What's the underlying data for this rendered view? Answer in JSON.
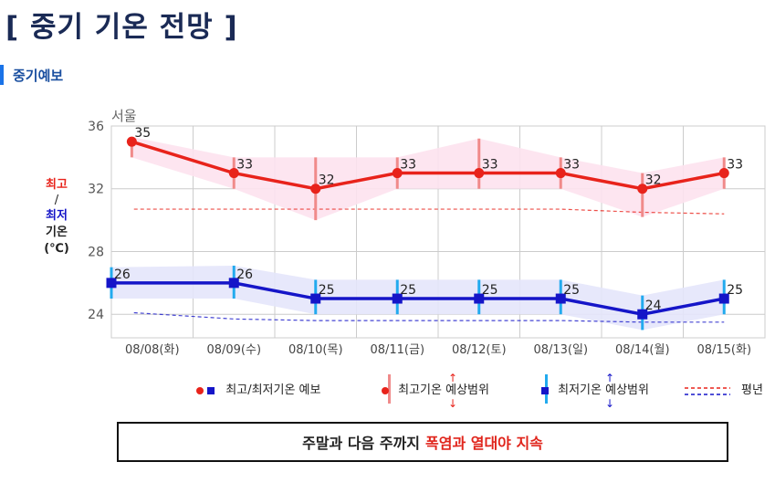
{
  "page": {
    "title": "[ 중기 기온 전망 ]",
    "section_label": "중기예보"
  },
  "chart_data": {
    "type": "line",
    "title": "서울",
    "ylabel_high": "최고",
    "ylabel_sep": "/",
    "ylabel_low": "최저",
    "ylabel_word": "기온",
    "ylabel_unit": "(℃)",
    "ylim": [
      22.5,
      36
    ],
    "yticks": [
      24,
      28,
      32,
      36
    ],
    "grid": true,
    "categories": [
      "08/08(화)",
      "08/09(수)",
      "08/10(목)",
      "08/11(금)",
      "08/12(토)",
      "08/13(일)",
      "08/14(월)",
      "08/15(화)"
    ],
    "series": [
      {
        "name": "최고",
        "color": "#e8231b",
        "marker": "circle",
        "x_offsets": [
          0.5,
          1,
          1,
          1,
          1,
          1,
          1,
          1
        ],
        "values": [
          35,
          33,
          32,
          33,
          33,
          33,
          32,
          33
        ],
        "range_low": [
          34,
          32,
          30,
          32,
          32,
          32,
          30.2,
          32
        ],
        "range_high": [
          35.3,
          34,
          34,
          34,
          35.2,
          34,
          33,
          34
        ],
        "normal": [
          30.7,
          30.7,
          30.7,
          30.7,
          30.7,
          30.7,
          30.5,
          30.4
        ]
      },
      {
        "name": "최저",
        "color": "#1515c8",
        "marker": "square",
        "x_offsets": [
          0,
          1,
          1,
          1,
          1,
          1,
          1,
          1
        ],
        "values": [
          26,
          26,
          25,
          25,
          25,
          25,
          24,
          25
        ],
        "range_low": [
          25,
          25,
          24,
          24,
          24,
          24,
          23,
          24
        ],
        "range_high": [
          27,
          27.1,
          26.2,
          26.2,
          26.2,
          26.2,
          25.2,
          26.2
        ],
        "normal": [
          24.1,
          23.7,
          23.6,
          23.6,
          23.6,
          23.6,
          23.5,
          23.5
        ]
      }
    ],
    "legend": {
      "forecast": "최고/최저기온 예보",
      "high_range": "최고기온 예상범위",
      "low_range": "최저기온 예상범위",
      "normal": "평년"
    }
  },
  "summary": {
    "text": "주말과 다음 주까지",
    "highlight": "폭염과 열대야 지속"
  }
}
